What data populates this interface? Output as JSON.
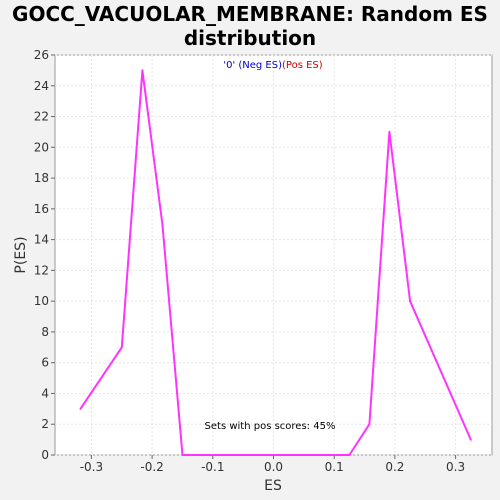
{
  "chart_data": {
    "type": "line",
    "title_line1": "GOCC_VACUOLAR_MEMBRANE: Random ES",
    "title_line2": "distribution",
    "xlabel": "ES",
    "ylabel": "P(ES)",
    "xlim": [
      -0.36,
      0.36
    ],
    "ylim": [
      0,
      26
    ],
    "x_ticks": [
      "-0.3",
      "-0.2",
      "-0.1",
      "0.0",
      "0.1",
      "0.2",
      "0.3"
    ],
    "x_tick_values": [
      -0.3,
      -0.2,
      -0.1,
      0.0,
      0.1,
      0.2,
      0.3
    ],
    "y_ticks": [
      "0",
      "2",
      "4",
      "6",
      "8",
      "10",
      "12",
      "14",
      "16",
      "18",
      "20",
      "22",
      "24",
      "26"
    ],
    "y_tick_values": [
      0,
      2,
      4,
      6,
      8,
      10,
      12,
      14,
      16,
      18,
      20,
      22,
      24,
      26
    ],
    "grid": true,
    "legend": {
      "neg_label": "'0' (Neg ES)",
      "pos_label": "(Pos ES)",
      "neg_color": "#0000cc",
      "pos_color": "#cc0000",
      "position": "top-center"
    },
    "annotation": "Sets with pos scores: 45%",
    "line_color": "#ff33ff",
    "series": [
      {
        "x": [
          -0.318,
          -0.25,
          -0.216,
          -0.183,
          -0.15,
          0.125,
          0.158,
          0.191,
          0.225,
          0.325
        ],
        "y": [
          3,
          7,
          25,
          15,
          0,
          0,
          2,
          21,
          10,
          1
        ]
      }
    ]
  }
}
